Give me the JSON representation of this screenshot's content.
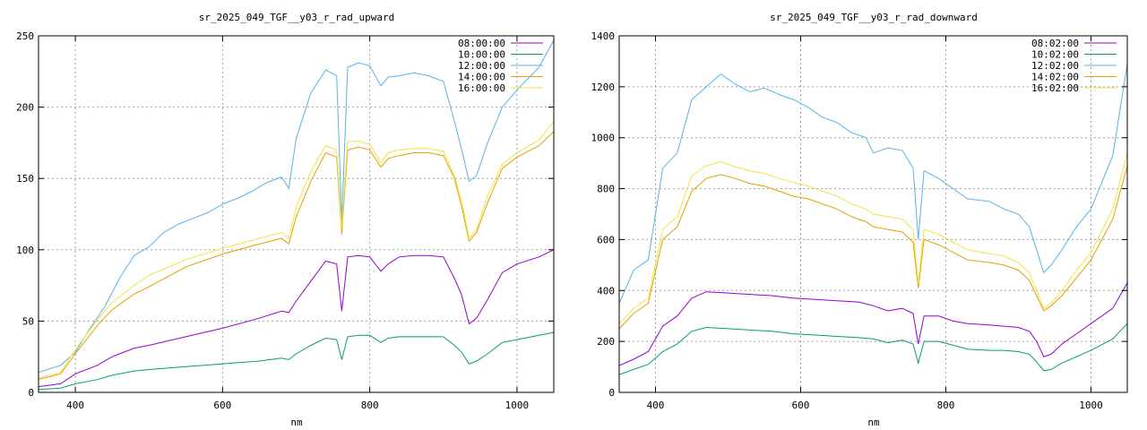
{
  "chart_data": [
    {
      "type": "line",
      "title": "sr_2025_049_TGF__y03_r_rad_upward",
      "xlabel": "nm",
      "ylabel": "",
      "xlim": [
        350,
        1050
      ],
      "ylim": [
        0,
        250
      ],
      "xticks": [
        400,
        600,
        800,
        1000
      ],
      "yticks": [
        0,
        50,
        100,
        150,
        200,
        250
      ],
      "grid": true,
      "legend_position": "top-right",
      "series": [
        {
          "name": "08:00:00",
          "color": "#9400d3",
          "x": [
            350,
            380,
            400,
            430,
            450,
            480,
            500,
            550,
            600,
            650,
            680,
            690,
            700,
            720,
            740,
            755,
            762,
            770,
            785,
            800,
            815,
            825,
            840,
            860,
            880,
            900,
            915,
            925,
            935,
            945,
            960,
            980,
            1000,
            1030,
            1050
          ],
          "y": [
            4,
            6,
            13,
            19,
            25,
            31,
            33,
            39,
            45,
            52,
            57,
            56,
            64,
            78,
            92,
            90,
            57,
            95,
            96,
            95,
            85,
            90,
            95,
            96,
            96,
            95,
            80,
            68,
            48,
            52,
            65,
            84,
            90,
            95,
            100
          ]
        },
        {
          "name": "10:00:00",
          "color": "#009e73",
          "x": [
            350,
            380,
            400,
            430,
            450,
            480,
            500,
            550,
            600,
            650,
            680,
            690,
            700,
            720,
            740,
            755,
            762,
            770,
            785,
            800,
            815,
            825,
            840,
            860,
            880,
            900,
            915,
            925,
            935,
            945,
            960,
            980,
            1000,
            1030,
            1050
          ],
          "y": [
            2,
            3,
            6,
            9,
            12,
            15,
            16,
            18,
            20,
            22,
            24,
            23,
            27,
            33,
            38,
            37,
            23,
            39,
            40,
            40,
            35,
            38,
            39,
            39,
            39,
            39,
            33,
            28,
            20,
            22,
            27,
            35,
            37,
            40,
            42
          ]
        },
        {
          "name": "12:00:00",
          "color": "#56b4e9",
          "x": [
            350,
            380,
            400,
            420,
            440,
            460,
            480,
            500,
            520,
            540,
            560,
            580,
            600,
            620,
            640,
            660,
            680,
            690,
            700,
            720,
            740,
            755,
            762,
            770,
            785,
            800,
            815,
            825,
            840,
            860,
            880,
            900,
            915,
            925,
            935,
            945,
            960,
            980,
            1000,
            1030,
            1050
          ],
          "y": [
            14,
            19,
            28,
            45,
            60,
            80,
            96,
            102,
            112,
            118,
            122,
            126,
            132,
            136,
            141,
            147,
            151,
            143,
            178,
            210,
            226,
            222,
            120,
            228,
            231,
            229,
            215,
            221,
            222,
            224,
            222,
            218,
            190,
            170,
            148,
            152,
            175,
            200,
            212,
            228,
            247
          ]
        },
        {
          "name": "14:00:00",
          "color": "#e69f00",
          "x": [
            350,
            380,
            400,
            430,
            450,
            480,
            500,
            550,
            600,
            650,
            680,
            690,
            700,
            720,
            740,
            755,
            762,
            770,
            785,
            800,
            815,
            825,
            840,
            860,
            880,
            900,
            915,
            925,
            935,
            945,
            960,
            980,
            1000,
            1030,
            1050
          ],
          "y": [
            9,
            13,
            27,
            47,
            58,
            69,
            74,
            88,
            97,
            104,
            108,
            104,
            123,
            148,
            168,
            165,
            111,
            170,
            172,
            170,
            158,
            164,
            166,
            168,
            168,
            166,
            150,
            130,
            106,
            112,
            133,
            157,
            165,
            173,
            183
          ]
        },
        {
          "name": "16:00:00",
          "color": "#f0e442",
          "x": [
            350,
            380,
            400,
            430,
            450,
            480,
            500,
            550,
            600,
            650,
            680,
            690,
            700,
            720,
            740,
            755,
            762,
            770,
            785,
            800,
            815,
            825,
            840,
            860,
            880,
            900,
            915,
            925,
            935,
            945,
            960,
            980,
            1000,
            1030,
            1050
          ],
          "y": [
            10,
            14,
            30,
            51,
            63,
            75,
            82,
            93,
            101,
            108,
            112,
            108,
            130,
            155,
            173,
            170,
            115,
            176,
            176,
            174,
            161,
            168,
            170,
            171,
            171,
            169,
            152,
            134,
            108,
            114,
            138,
            160,
            168,
            177,
            190
          ]
        }
      ]
    },
    {
      "type": "line",
      "title": "sr_2025_049_TGF__y03_r_rad_downward",
      "xlabel": "nm",
      "ylabel": "",
      "xlim": [
        350,
        1050
      ],
      "ylim": [
        0,
        1400
      ],
      "xticks": [
        400,
        600,
        800,
        1000
      ],
      "yticks": [
        0,
        200,
        400,
        600,
        800,
        1000,
        1200,
        1400
      ],
      "grid": true,
      "legend_position": "top-right",
      "series": [
        {
          "name": "08:02:00",
          "color": "#9400d3",
          "x": [
            350,
            370,
            390,
            410,
            430,
            450,
            470,
            500,
            530,
            560,
            590,
            620,
            650,
            680,
            700,
            720,
            740,
            755,
            762,
            770,
            790,
            810,
            830,
            860,
            880,
            900,
            915,
            925,
            935,
            945,
            960,
            980,
            1000,
            1030,
            1050
          ],
          "y": [
            105,
            130,
            160,
            260,
            300,
            370,
            395,
            390,
            385,
            380,
            370,
            365,
            360,
            355,
            340,
            320,
            330,
            310,
            190,
            300,
            300,
            280,
            270,
            265,
            260,
            255,
            240,
            200,
            140,
            150,
            190,
            230,
            270,
            330,
            430
          ]
        },
        {
          "name": "10:02:00",
          "color": "#009e73",
          "x": [
            350,
            370,
            390,
            410,
            430,
            450,
            470,
            500,
            530,
            560,
            590,
            620,
            650,
            680,
            700,
            720,
            740,
            755,
            762,
            770,
            790,
            810,
            830,
            860,
            880,
            900,
            915,
            925,
            935,
            945,
            960,
            980,
            1000,
            1030,
            1050
          ],
          "y": [
            70,
            90,
            110,
            160,
            190,
            240,
            255,
            250,
            245,
            240,
            230,
            225,
            220,
            215,
            210,
            195,
            205,
            190,
            115,
            200,
            200,
            185,
            170,
            165,
            165,
            160,
            150,
            120,
            85,
            90,
            115,
            140,
            165,
            210,
            270
          ]
        },
        {
          "name": "12:02:00",
          "color": "#56b4e9",
          "x": [
            350,
            370,
            390,
            410,
            430,
            450,
            470,
            490,
            510,
            530,
            550,
            570,
            590,
            610,
            630,
            650,
            670,
            690,
            700,
            720,
            740,
            755,
            762,
            770,
            790,
            810,
            830,
            860,
            880,
            900,
            915,
            925,
            935,
            945,
            960,
            980,
            1000,
            1030,
            1050
          ],
          "y": [
            350,
            480,
            520,
            880,
            940,
            1150,
            1200,
            1250,
            1210,
            1180,
            1195,
            1170,
            1150,
            1120,
            1080,
            1060,
            1020,
            1000,
            940,
            960,
            950,
            880,
            600,
            870,
            840,
            800,
            760,
            750,
            720,
            700,
            650,
            560,
            470,
            500,
            560,
            650,
            720,
            930,
            1290
          ]
        },
        {
          "name": "14:02:00",
          "color": "#e69f00",
          "x": [
            350,
            370,
            390,
            410,
            430,
            450,
            470,
            490,
            510,
            530,
            550,
            570,
            590,
            610,
            630,
            650,
            670,
            690,
            700,
            720,
            740,
            755,
            762,
            770,
            790,
            810,
            830,
            860,
            880,
            900,
            915,
            925,
            935,
            945,
            960,
            980,
            1000,
            1030,
            1050
          ],
          "y": [
            250,
            310,
            350,
            600,
            650,
            790,
            840,
            855,
            840,
            820,
            810,
            790,
            770,
            760,
            740,
            720,
            690,
            670,
            650,
            640,
            630,
            590,
            410,
            600,
            580,
            550,
            520,
            510,
            500,
            480,
            440,
            380,
            320,
            340,
            380,
            450,
            520,
            680,
            890
          ]
        },
        {
          "name": "16:02:00",
          "color": "#f0e442",
          "x": [
            350,
            370,
            390,
            410,
            430,
            450,
            470,
            490,
            510,
            530,
            550,
            570,
            590,
            610,
            630,
            650,
            670,
            690,
            700,
            720,
            740,
            755,
            762,
            770,
            790,
            810,
            830,
            860,
            880,
            900,
            915,
            925,
            935,
            945,
            960,
            980,
            1000,
            1030,
            1050
          ],
          "y": [
            270,
            330,
            370,
            640,
            690,
            850,
            890,
            905,
            885,
            870,
            860,
            840,
            825,
            810,
            790,
            770,
            740,
            720,
            700,
            690,
            680,
            640,
            430,
            640,
            620,
            590,
            560,
            545,
            535,
            510,
            470,
            400,
            330,
            350,
            400,
            480,
            550,
            720,
            940
          ]
        }
      ]
    }
  ]
}
